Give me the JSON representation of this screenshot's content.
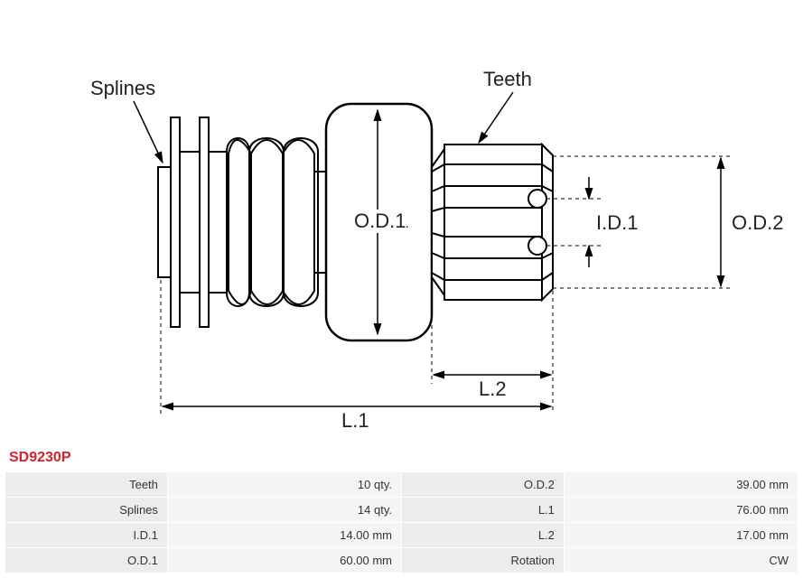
{
  "partNumber": "SD9230P",
  "diagram": {
    "callouts": {
      "splines": "Splines",
      "teeth": "Teeth"
    },
    "dimensions": {
      "od1": "O.D.1",
      "od2": "O.D.2",
      "id1": "I.D.1",
      "l1": "L.1",
      "l2": "L.2"
    },
    "style": {
      "stroke": "#000000",
      "strokeWidth": 2,
      "dimStroke": "#000000",
      "dimStrokeWidth": 1.2,
      "dashPattern": "4,4",
      "background": "#ffffff",
      "fill": "#ffffff"
    }
  },
  "specs": {
    "rows": [
      {
        "l1": "Teeth",
        "v1": "10 qty.",
        "l2": "O.D.2",
        "v2": "39.00 mm"
      },
      {
        "l1": "Splines",
        "v1": "14 qty.",
        "l2": "L.1",
        "v2": "76.00 mm"
      },
      {
        "l1": "I.D.1",
        "v1": "14.00 mm",
        "l2": "L.2",
        "v2": "17.00 mm"
      },
      {
        "l1": "O.D.1",
        "v1": "60.00 mm",
        "l2": "Rotation",
        "v2": "CW"
      }
    ]
  }
}
